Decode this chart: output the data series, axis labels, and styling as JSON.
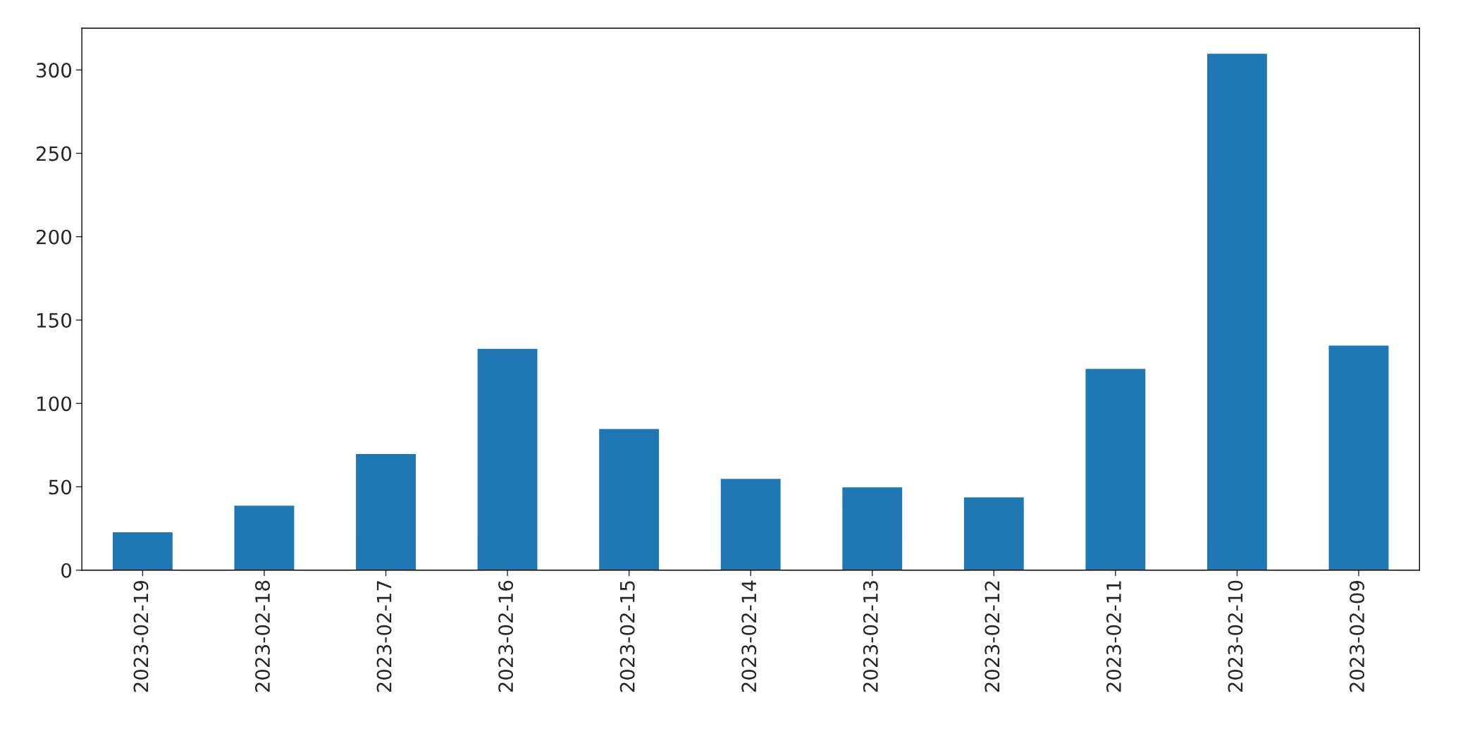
{
  "chart_data": {
    "type": "bar",
    "categories": [
      "2023-02-19",
      "2023-02-18",
      "2023-02-17",
      "2023-02-16",
      "2023-02-15",
      "2023-02-14",
      "2023-02-13",
      "2023-02-12",
      "2023-02-11",
      "2023-02-10",
      "2023-02-09"
    ],
    "values": [
      23,
      39,
      70,
      133,
      85,
      55,
      50,
      44,
      121,
      310,
      135
    ],
    "color": "#1f77b4",
    "ylim": [
      0,
      325
    ],
    "yticks": [
      0,
      50,
      100,
      150,
      200,
      250,
      300
    ],
    "grid": false,
    "legend": false
  }
}
